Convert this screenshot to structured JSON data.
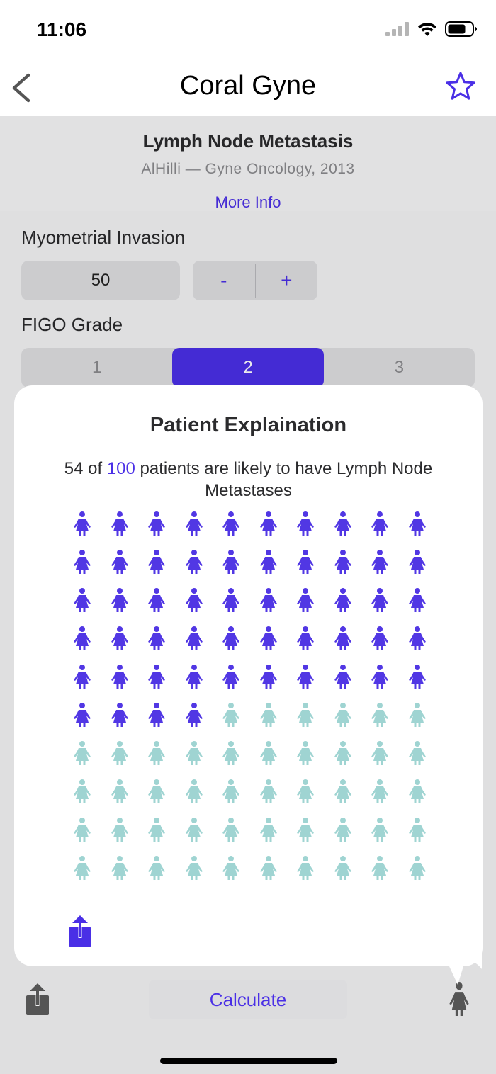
{
  "status_bar": {
    "time": "11:06",
    "icons": [
      "cellular-signal-icon",
      "wifi-icon",
      "battery-icon"
    ]
  },
  "nav": {
    "title": "Coral Gyne",
    "back_icon": "chevron-left-icon",
    "favorite_icon": "star-icon"
  },
  "header": {
    "title": "Lymph Node Metastasis",
    "reference": "AlHilli — Gyne Oncology, 2013",
    "more_info": "More Info"
  },
  "form": {
    "myometrial_label": "Myometrial Invasion",
    "myometrial_value": "50",
    "stepper_minus": "-",
    "stepper_plus": "+",
    "figo_label": "FIGO Grade",
    "figo_options": [
      "1",
      "2",
      "3"
    ],
    "figo_selected": "2"
  },
  "popover": {
    "title": "Patient Explaination",
    "text_count": "54",
    "text_of": " of ",
    "text_total": "100",
    "text_rest": " patients are likely to have Lymph Node Metastases",
    "affected": 54,
    "total": 100,
    "columns": 10,
    "share_icon": "share-icon"
  },
  "toolbar": {
    "calculate_label": "Calculate",
    "share_icon": "share-icon",
    "patient_icon": "person-icon"
  },
  "colors": {
    "accent": "#4a2fe6",
    "affected": "#5137e4",
    "unaffected": "#9fd4d2"
  }
}
